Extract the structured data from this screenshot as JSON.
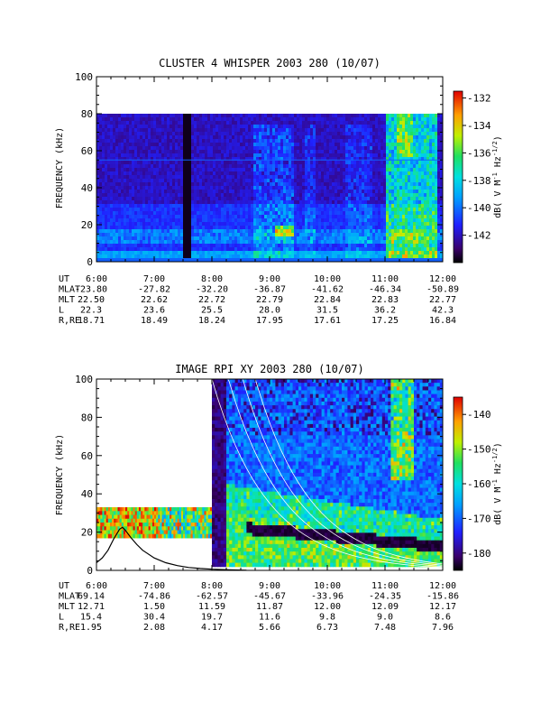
{
  "chart_data": [
    {
      "type": "heatmap",
      "title": "CLUSTER 4 WHISPER 2003 280 (10/07)",
      "ylabel": "FREQUENCY (kHz)",
      "ylim": [
        0,
        100
      ],
      "yticks": [
        "0",
        "20",
        "40",
        "60",
        "80",
        "100"
      ],
      "y_data_max": 80,
      "colorbar": {
        "label": "dB( V M^-1 Hz^-1/2)",
        "range": [
          -144,
          -131.5
        ],
        "ticks": [
          "-132",
          "-134",
          "-136",
          "-138",
          "-140",
          "-142"
        ],
        "tick_values": [
          -132,
          -134,
          -136,
          -138,
          -140,
          -142
        ]
      },
      "xticks": [
        "6:00",
        "7:00",
        "8:00",
        "9:00",
        "10:00",
        "11:00",
        "12:00"
      ],
      "ephemeris": {
        "labels": [
          "UT",
          "MLAT",
          "MLT",
          "L",
          "R,RE"
        ],
        "rows": [
          [
            "-23.80",
            "-27.82",
            "-32.20",
            "-36.87",
            "-41.62",
            "-46.34",
            "-50.89"
          ],
          [
            "22.50",
            "22.62",
            "22.72",
            "22.79",
            "22.84",
            "22.83",
            "22.77"
          ],
          [
            "22.3",
            "23.6",
            "25.5",
            "28.0",
            "31.5",
            "36.2",
            "42.3"
          ],
          [
            "18.71",
            "18.49",
            "18.24",
            "17.95",
            "17.61",
            "17.25",
            "16.84"
          ]
        ]
      }
    },
    {
      "type": "heatmap",
      "title": "IMAGE RPI XY 2003 280 (10/07)",
      "ylabel": "FREQUENCY (kHz)",
      "ylim": [
        0,
        100
      ],
      "yticks": [
        "0",
        "20",
        "40",
        "60",
        "80",
        "100"
      ],
      "colorbar": {
        "label": "dB( V M^-1 Hz^-1/2)",
        "range": [
          -185,
          -135
        ],
        "ticks": [
          "-140",
          "-150",
          "-160",
          "-170",
          "-180"
        ],
        "tick_values": [
          -140,
          -150,
          -160,
          -170,
          -180
        ]
      },
      "xticks": [
        "6:00",
        "7:00",
        "8:00",
        "9:00",
        "10:00",
        "11:00",
        "12:00"
      ],
      "plasma_frequency_trace": {
        "x_hours": [
          6.0,
          6.1,
          6.2,
          6.3,
          6.4,
          6.45,
          6.5,
          6.6,
          6.7,
          6.8,
          7.0,
          7.2,
          7.4,
          7.6,
          7.8,
          8.0,
          8.3,
          8.6
        ],
        "y_khz": [
          4.0,
          6.5,
          10.5,
          16.5,
          21.5,
          22.5,
          21.0,
          17.0,
          13.5,
          10.5,
          6.5,
          4.0,
          2.5,
          1.5,
          1.0,
          0.6,
          0.3,
          0.1
        ]
      },
      "ephemeris": {
        "labels": [
          "UT",
          "MLAT",
          "MLT",
          "L",
          "R,RE"
        ],
        "rows": [
          [
            "69.14",
            "-74.86",
            "-62.57",
            "-45.67",
            "-33.96",
            "-24.35",
            "-15.86"
          ],
          [
            "12.71",
            "1.50",
            "11.59",
            "11.87",
            "12.00",
            "12.09",
            "12.17"
          ],
          [
            "15.4",
            "30.4",
            "19.7",
            "11.6",
            "9.8",
            "9.0",
            "8.6"
          ],
          [
            "1.95",
            "2.08",
            "4.17",
            "5.66",
            "6.73",
            "7.48",
            "7.96"
          ]
        ]
      }
    }
  ]
}
